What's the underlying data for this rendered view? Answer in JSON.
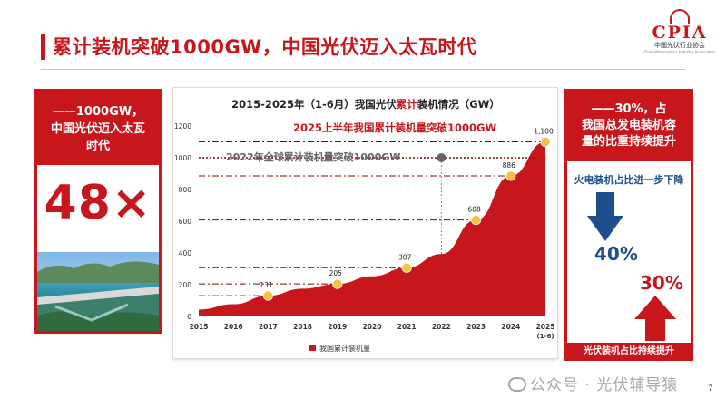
{
  "header": {
    "title": "累计装机突破1000GW，中国光伏迈入太瓦时代",
    "logo_text": "CPIA",
    "logo_sub": "中国光伏行业协会",
    "logo_sub_en": "China Photovoltaic Industry Association"
  },
  "left_card": {
    "line1": "——1000GW，",
    "line2": "中国光伏迈入太瓦",
    "line3": "时代",
    "big_number": "48×"
  },
  "right_card": {
    "line1": "——30%，占",
    "line2": "我国总发电装机容",
    "line3": "量的比重持续提升",
    "thermal_text": "火电装机占比进一步下降",
    "thermal_value": "40%",
    "pv_value": "30%",
    "pv_text": "光伏装机占比持续提升",
    "colors": {
      "down_arrow": "#1f4e8c",
      "up_arrow": "#c8161d"
    }
  },
  "footer": {
    "watermark": "公众号 · 光伏辅导猿",
    "page_number": "7"
  },
  "chart_data": {
    "type": "area",
    "title_prefix": "2015-2025年（1-6月）我国光伏",
    "title_highlight": "累计",
    "title_suffix": "装机情况（GW）",
    "x": [
      "2015",
      "2016",
      "2017",
      "2018",
      "2019",
      "2020",
      "2021",
      "2022",
      "2023",
      "2024",
      "2025"
    ],
    "x_sublabel": {
      "2025": "(1-6)"
    },
    "values": [
      43,
      77,
      131,
      175,
      205,
      253,
      307,
      393,
      608,
      886,
      1100
    ],
    "labeled_points": {
      "2017": "131",
      "2019": "205",
      "2021": "307",
      "2023": "608",
      "2024": "886",
      "2025": "1,100"
    },
    "ylim": [
      0,
      1200
    ],
    "yticks": [
      0,
      200,
      400,
      600,
      800,
      1000,
      1200
    ],
    "ytick_labels": [
      "0",
      "200",
      "400",
      "600",
      "800",
      "1000",
      "1200"
    ],
    "xlabel": "",
    "ylabel": "",
    "legend": "我国累计装机量",
    "legend_position": "bottom",
    "annotations": {
      "milestone_2025": "2025上半年我国累计装机量突破1000GW",
      "milestone_2022": "2022年全球累计装机量突破1000GW"
    },
    "reference_lines": [
      1000,
      886,
      608,
      307,
      205,
      131,
      1100
    ],
    "grid": false,
    "colors": {
      "area": "#c8161d",
      "marker": "#f5c342",
      "ref_line": "#8b0000",
      "global_marker": "#666666"
    }
  }
}
